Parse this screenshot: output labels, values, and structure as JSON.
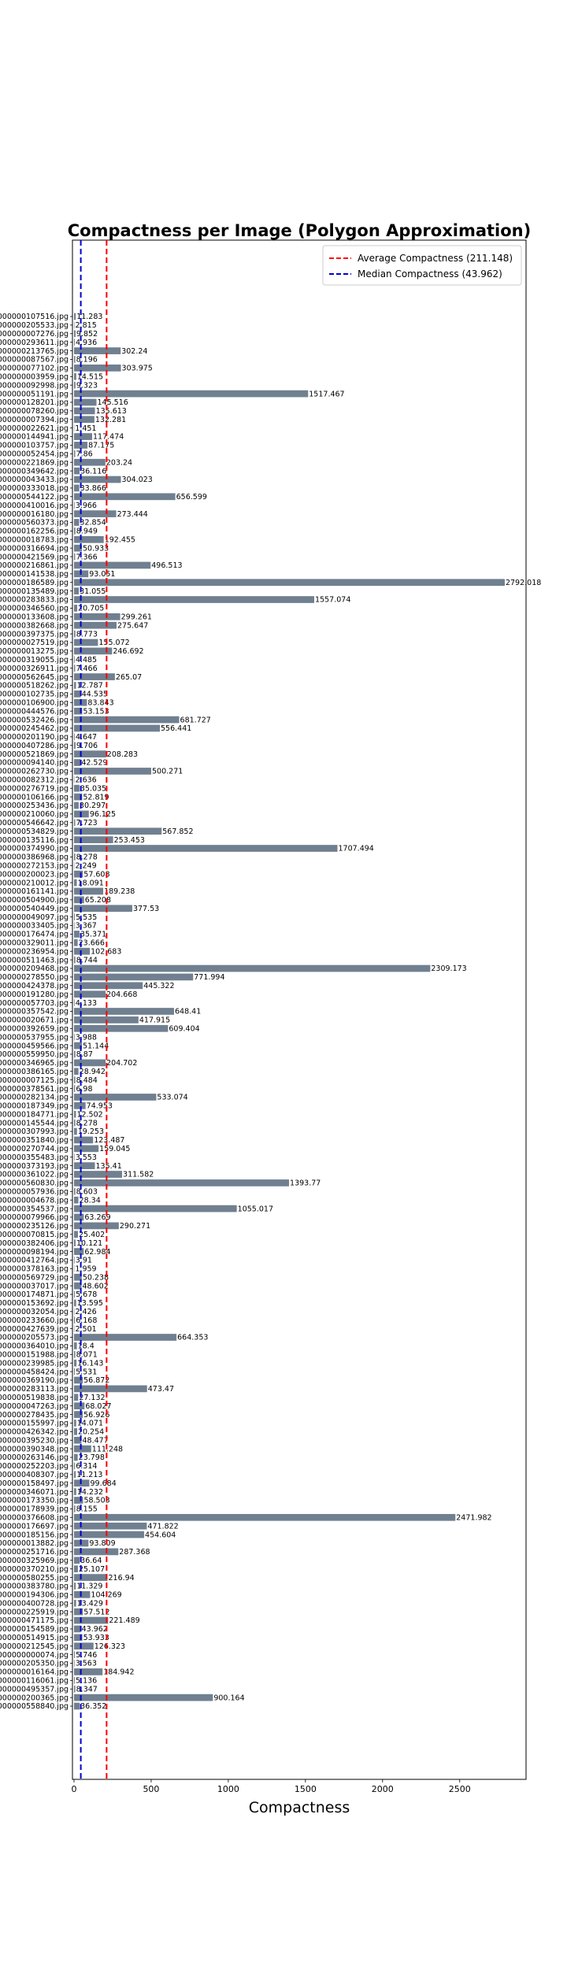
{
  "chart_data": {
    "type": "bar",
    "orientation": "horizontal",
    "title": "Compactness per Image (Polygon Approximation)",
    "xlabel": "Compactness",
    "ylabel": "",
    "xlim": [
      0,
      2930
    ],
    "xticks": [
      0,
      500,
      1000,
      1500,
      2000,
      2500
    ],
    "grid": false,
    "legend_position": "top-right",
    "bar_color": "#708090",
    "reference_lines": [
      {
        "label": "Average Compactness (211.148)",
        "value": 211.148,
        "color": "#ff0000",
        "style": "dashed"
      },
      {
        "label": "Median Compactness (43.962)",
        "value": 43.962,
        "color": "#0000cc",
        "style": "dashed"
      }
    ],
    "categories": [
      "000000107516.jpg",
      "000000205533.jpg",
      "000000007276.jpg",
      "000000293611.jpg",
      "000000213765.jpg",
      "000000087567.jpg",
      "000000077102.jpg",
      "000000003959.jpg",
      "000000092998.jpg",
      "000000051191.jpg",
      "000000128201.jpg",
      "000000078260.jpg",
      "000000007394.jpg",
      "000000022621.jpg",
      "000000144941.jpg",
      "000000103757.jpg",
      "000000052454.jpg",
      "000000221869.jpg",
      "000000349642.jpg",
      "000000043433.jpg",
      "000000333018.jpg",
      "000000544122.jpg",
      "000000410016.jpg",
      "000000016180.jpg",
      "000000560373.jpg",
      "000000162256.jpg",
      "000000018783.jpg",
      "000000316694.jpg",
      "000000421569.jpg",
      "000000216861.jpg",
      "000000141538.jpg",
      "000000186589.jpg",
      "000000135489.jpg",
      "000000283833.jpg",
      "000000346560.jpg",
      "000000133608.jpg",
      "000000382668.jpg",
      "000000397375.jpg",
      "000000027519.jpg",
      "000000013275.jpg",
      "000000319055.jpg",
      "000000326911.jpg",
      "000000562645.jpg",
      "000000518262.jpg",
      "000000102735.jpg",
      "000000106900.jpg",
      "000000444576.jpg",
      "000000532426.jpg",
      "000000245462.jpg",
      "000000201190.jpg",
      "000000407286.jpg",
      "000000521869.jpg",
      "000000094140.jpg",
      "000000262730.jpg",
      "000000082312.jpg",
      "000000276719.jpg",
      "000000106166.jpg",
      "000000253436.jpg",
      "000000210060.jpg",
      "000000546642.jpg",
      "000000534829.jpg",
      "000000135116.jpg",
      "000000374990.jpg",
      "000000386968.jpg",
      "000000272153.jpg",
      "000000200023.jpg",
      "000000210012.jpg",
      "000000161141.jpg",
      "000000504900.jpg",
      "000000540449.jpg",
      "000000049097.jpg",
      "000000033405.jpg",
      "000000176474.jpg",
      "000000329011.jpg",
      "000000236954.jpg",
      "000000511463.jpg",
      "000000209468.jpg",
      "000000278550.jpg",
      "000000424378.jpg",
      "000000191280.jpg",
      "000000057703.jpg",
      "000000357542.jpg",
      "000000020671.jpg",
      "000000392659.jpg",
      "000000537955.jpg",
      "000000459566.jpg",
      "000000559950.jpg",
      "000000346965.jpg",
      "000000386165.jpg",
      "000000007125.jpg",
      "000000378561.jpg",
      "000000282134.jpg",
      "000000187349.jpg",
      "000000184771.jpg",
      "000000145544.jpg",
      "000000307993.jpg",
      "000000351840.jpg",
      "000000270744.jpg",
      "000000355483.jpg",
      "000000373193.jpg",
      "000000361022.jpg",
      "000000560830.jpg",
      "000000057936.jpg",
      "000000004678.jpg",
      "000000354537.jpg",
      "000000079966.jpg",
      "000000235126.jpg",
      "000000070815.jpg",
      "000000382406.jpg",
      "000000098194.jpg",
      "000000412764.jpg",
      "000000378163.jpg",
      "000000569729.jpg",
      "000000037017.jpg",
      "000000174871.jpg",
      "000000153692.jpg",
      "000000032054.jpg",
      "000000233660.jpg",
      "000000427639.jpg",
      "000000205573.jpg",
      "000000364010.jpg",
      "000000151988.jpg",
      "000000239985.jpg",
      "000000458424.jpg",
      "000000369190.jpg",
      "000000283113.jpg",
      "000000519838.jpg",
      "000000047263.jpg",
      "000000278435.jpg",
      "000000155997.jpg",
      "000000426342.jpg",
      "000000395230.jpg",
      "000000390348.jpg",
      "000000263146.jpg",
      "000000252203.jpg",
      "000000408307.jpg",
      "000000158497.jpg",
      "000000346071.jpg",
      "000000173350.jpg",
      "000000178939.jpg",
      "000000376608.jpg",
      "000000176697.jpg",
      "000000185156.jpg",
      "000000013882.jpg",
      "000000251716.jpg",
      "000000325969.jpg",
      "000000370210.jpg",
      "000000580255.jpg",
      "000000383780.jpg",
      "000000194306.jpg",
      "000000400728.jpg",
      "000000225919.jpg",
      "000000471175.jpg",
      "000000154589.jpg",
      "000000514915.jpg",
      "000000212545.jpg",
      "000000000074.jpg",
      "000000205350.jpg",
      "000000016164.jpg",
      "000000116061.jpg",
      "000000495357.jpg",
      "000000200365.jpg",
      "000000558840.jpg"
    ],
    "values": [
      11.283,
      2.815,
      9.852,
      4.936,
      302.24,
      8.196,
      303.975,
      14.515,
      9.323,
      1517.467,
      145.516,
      135.613,
      132.281,
      1.451,
      117.474,
      87.175,
      7.86,
      203.24,
      36.116,
      304.023,
      33.866,
      656.599,
      3.966,
      273.444,
      32.854,
      8.949,
      192.455,
      50.933,
      7.366,
      496.513,
      93.051,
      2792.018,
      31.055,
      1557.074,
      20.705,
      299.261,
      275.647,
      8.773,
      155.072,
      246.692,
      4.485,
      7.466,
      265.07,
      12.787,
      44.535,
      83.843,
      53.153,
      681.727,
      556.441,
      4.647,
      9.706,
      208.283,
      42.529,
      500.271,
      2.636,
      35.035,
      52.819,
      30.297,
      96.125,
      7.723,
      567.852,
      253.453,
      1707.494,
      8.278,
      2.249,
      57.608,
      18.091,
      189.238,
      65.208,
      377.53,
      5.535,
      3.367,
      35.371,
      23.666,
      102.683,
      8.744,
      2309.173,
      771.994,
      445.322,
      204.668,
      4.133,
      648.41,
      417.915,
      609.404,
      3.988,
      51.144,
      8.87,
      204.702,
      28.942,
      8.484,
      6.98,
      533.074,
      74.953,
      12.502,
      8.278,
      19.253,
      123.487,
      159.045,
      3.553,
      135.41,
      311.582,
      1393.77,
      8.603,
      28.34,
      1055.017,
      63.269,
      290.271,
      25.402,
      10.121,
      62.984,
      3.91,
      1.959,
      50.238,
      48.602,
      5.678,
      13.595,
      2.426,
      6.168,
      2.501,
      664.353,
      18.4,
      8.071,
      16.143,
      5.531,
      56.872,
      473.47,
      27.132,
      68.027,
      56.926,
      14.071,
      20.254,
      48.477,
      111.248,
      23.798,
      6.314,
      11.213,
      99.684,
      14.232,
      58.503,
      8.155,
      2471.982,
      471.822,
      454.604,
      93.809,
      287.368,
      36.64,
      25.107,
      216.94,
      11.329,
      104.269,
      13.429,
      57.512,
      221.489,
      43.962,
      53.933,
      126.323,
      5.746,
      3.563,
      184.942,
      5.136,
      8.347,
      900.164,
      36.352
    ]
  }
}
